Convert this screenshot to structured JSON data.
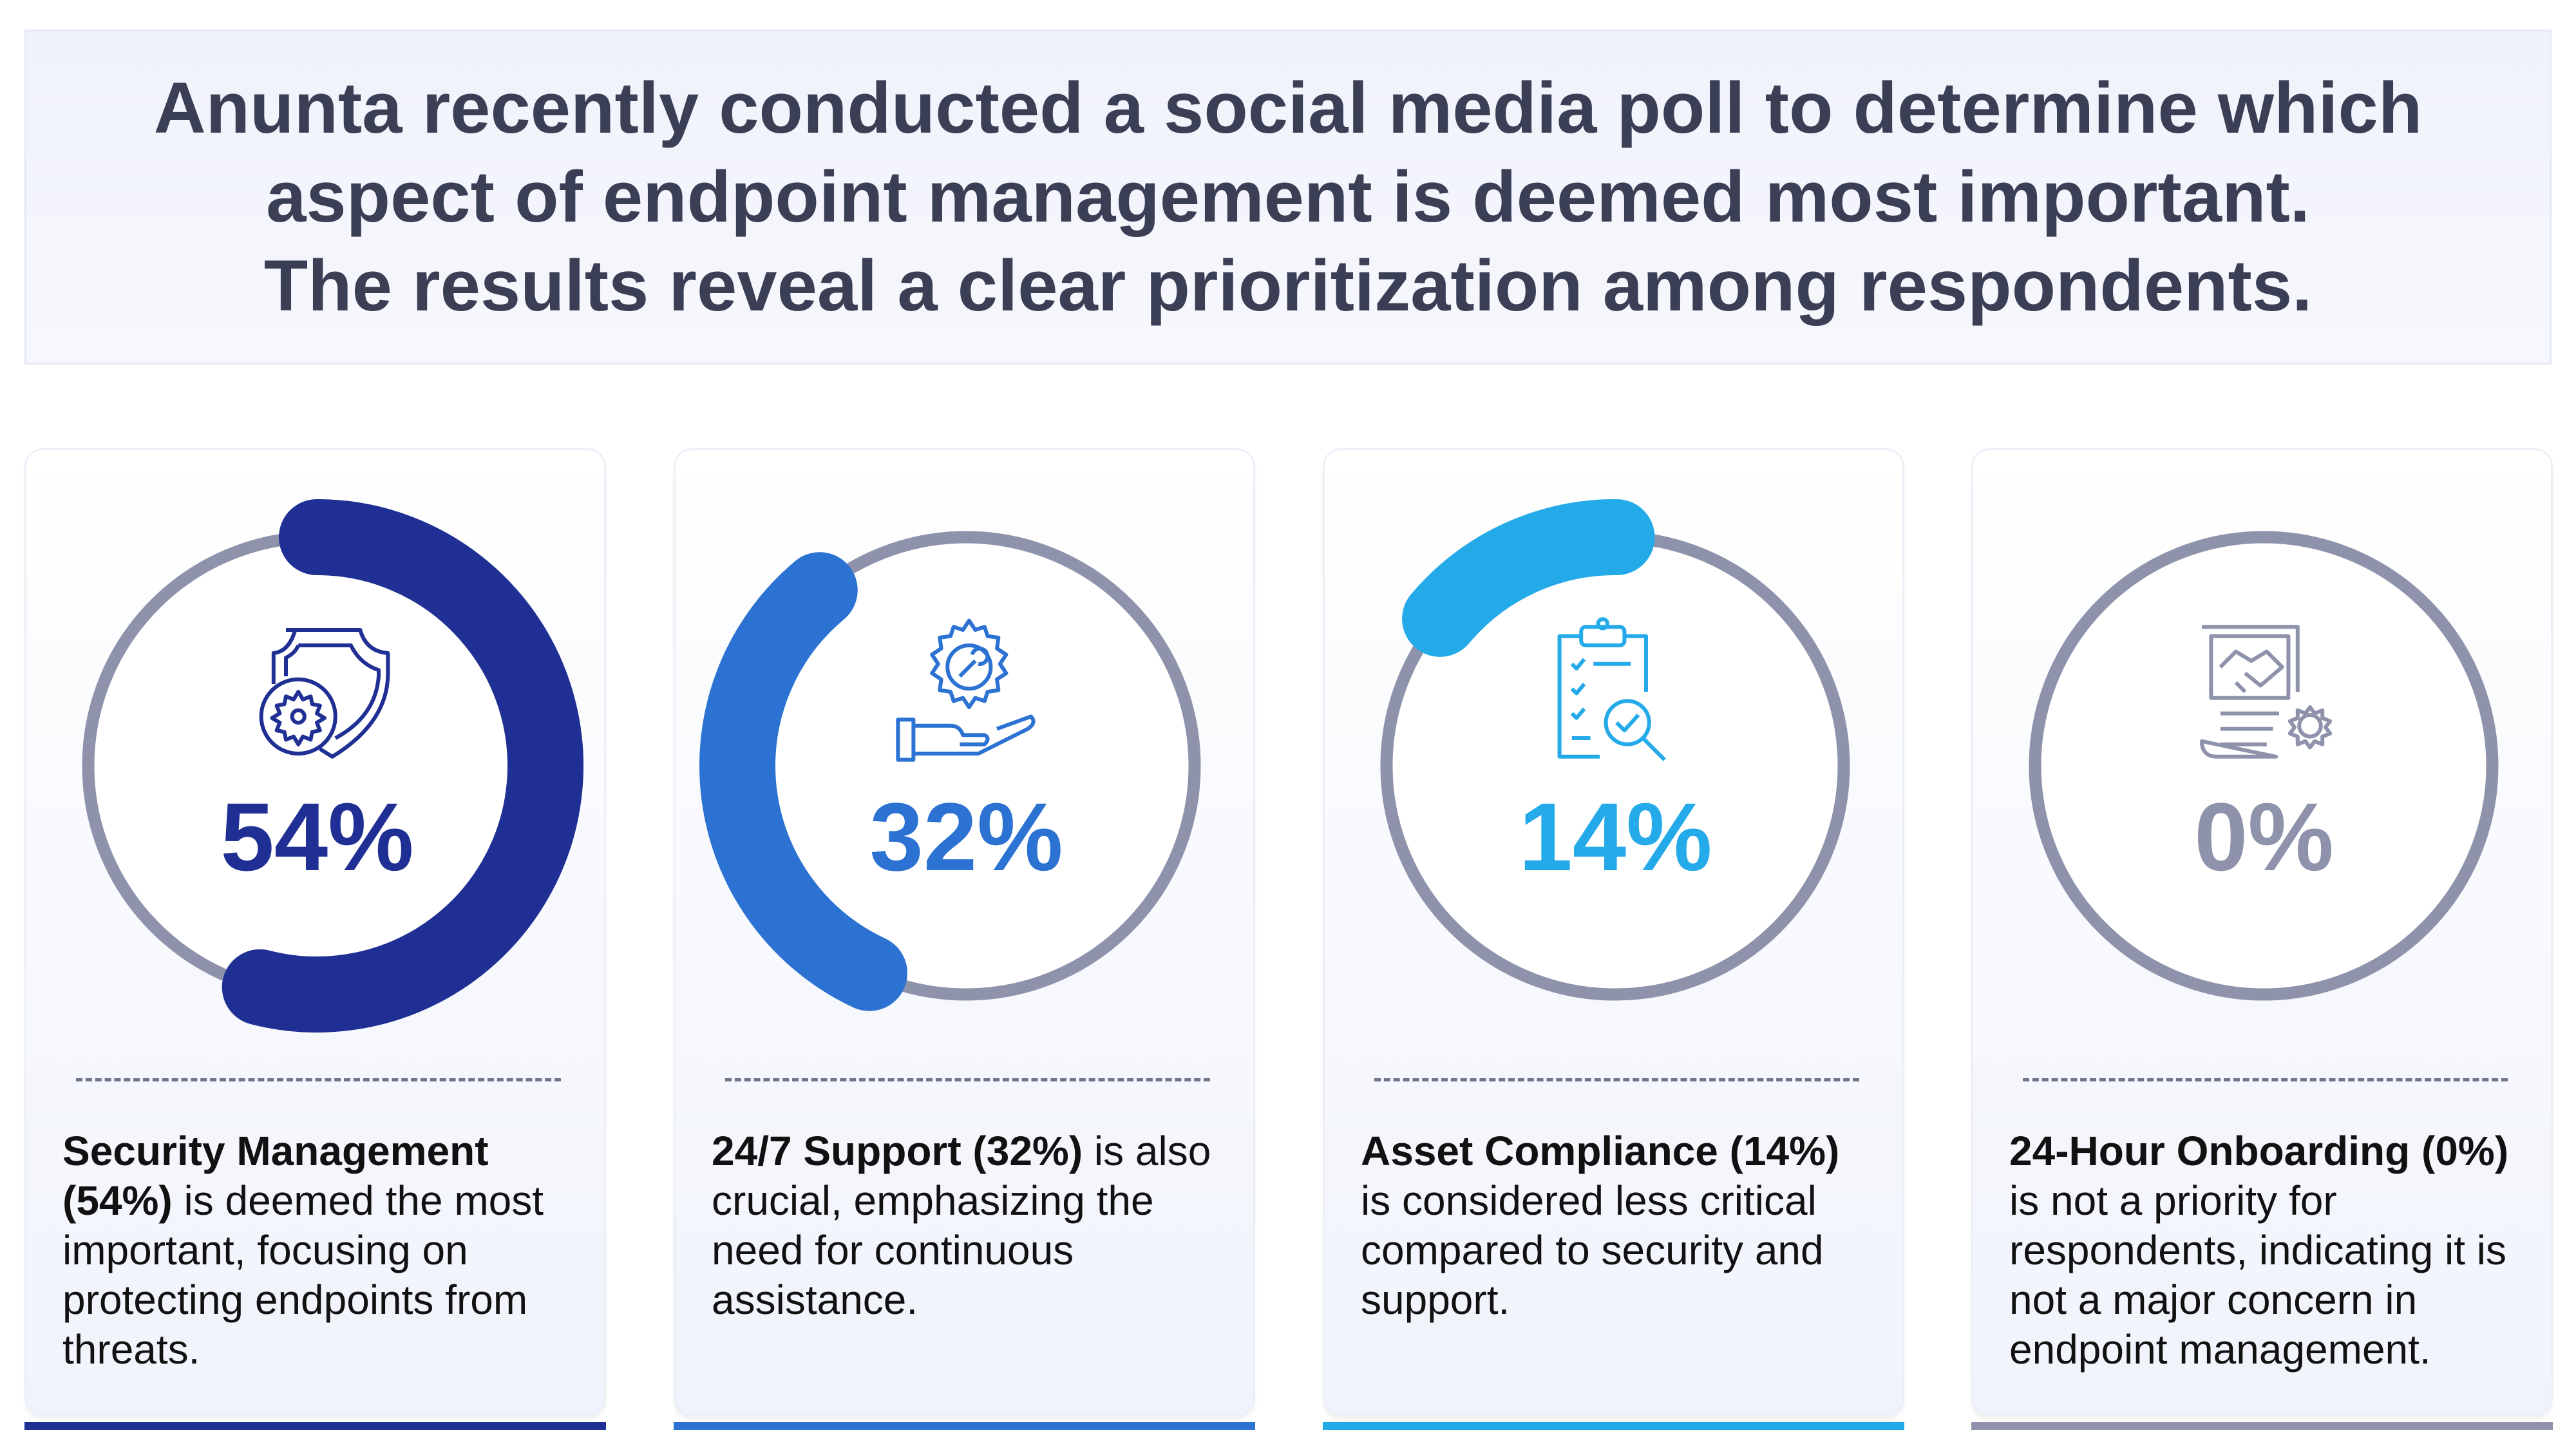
{
  "header": {
    "lines": [
      "Anunta recently conducted a social media poll to determine which",
      "aspect of endpoint management is deemed most important.",
      "The results reveal a clear prioritization among respondents."
    ]
  },
  "chart_data": {
    "type": "pie",
    "categories": [
      "Security Management",
      "24/7 Support",
      "Asset Compliance",
      "24-Hour Onboarding"
    ],
    "values": [
      54,
      32,
      14,
      0
    ],
    "unit": "%"
  },
  "cards": [
    {
      "percent_label": "54%",
      "value": 54,
      "color": "#1f2f94",
      "icon": "shield-gear-icon",
      "bold": "Security Management (54%)",
      "text": " is deemed the most important, focusing on protecting endpoints from threats."
    },
    {
      "percent_label": "32%",
      "value": 32,
      "color": "#2c72d2",
      "icon": "hand-gear-wrench-icon",
      "bold": "24/7 Support (32%)",
      "text": " is also crucial, emphasizing the need for continuous assistance."
    },
    {
      "percent_label": "14%",
      "value": 14,
      "color": "#25aae9",
      "icon": "clipboard-check-magnifier-icon",
      "bold": "Asset Compliance (14%)",
      "text": " is considered less critical compared to security and support."
    },
    {
      "percent_label": "0%",
      "value": 0,
      "color": "#8e92aa",
      "icon": "handshake-document-gear-icon",
      "bold": "24-Hour Onboarding (0%)",
      "text": " is not a priority for respondents, indicating it is not a major concern in endpoint management."
    }
  ],
  "colors": {
    "ring": "#8e93ab",
    "title": "#3b3f55"
  }
}
